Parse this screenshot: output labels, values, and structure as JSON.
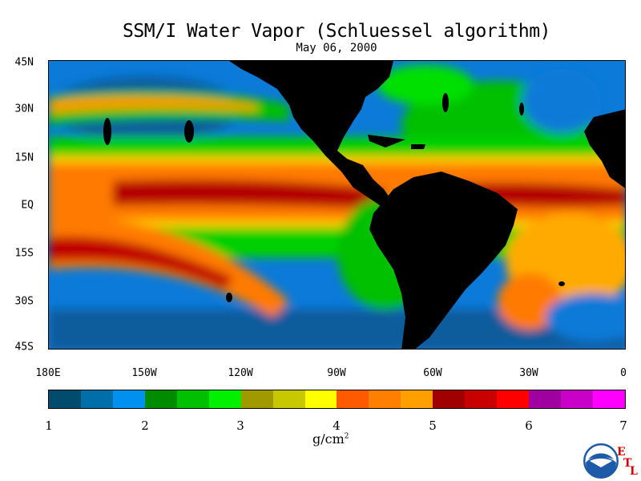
{
  "title": "SSM/I Water Vapor (Schluessel algorithm)",
  "date": "May 06, 2000",
  "map": {
    "lat_labels": [
      "45N",
      "30N",
      "15N",
      "EQ",
      "15S",
      "30S",
      "45S"
    ],
    "lon_labels": [
      "180E",
      "150W",
      "120W",
      "90W",
      "60W",
      "30W",
      "0"
    ],
    "land_color": "#000000",
    "ocean_field_colors": {
      "dry": "#0b5fa5",
      "moderate": "#00cc00",
      "moist": "#ffff00",
      "wet": "#ff6600",
      "very_wet": "#b40000",
      "saturated": "#ff00ff"
    }
  },
  "colorbar": {
    "colors": [
      "#004b6e",
      "#006ea8",
      "#0090f0",
      "#008c00",
      "#00c000",
      "#00f000",
      "#a09a00",
      "#c8c800",
      "#ffff00",
      "#ff5a00",
      "#ff8000",
      "#ffa000",
      "#a00000",
      "#c80000",
      "#ff0000",
      "#a000a0",
      "#c800c8",
      "#ff00ff"
    ],
    "tick_labels": [
      "1",
      "2",
      "3",
      "4",
      "5",
      "6",
      "7"
    ],
    "range": [
      1,
      7
    ],
    "units_base": "g/cm",
    "units_exp": "2"
  },
  "logo": {
    "text": "NOAA",
    "etl_letters": [
      "E",
      "T",
      "L"
    ]
  }
}
